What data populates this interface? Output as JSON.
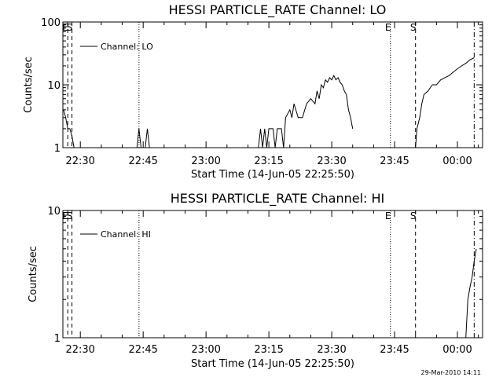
{
  "x_axis_time_range": [
    "22:25:50",
    "00:06"
  ],
  "footer": {
    "timestamp": "29-Mar-2010 14:11"
  },
  "chart_data": [
    {
      "type": "line",
      "title": "HESSI PARTICLE_RATE Channel: LO",
      "xlabel": "Start Time (14-Jun-05 22:25:50)",
      "ylabel": "Counts/sec",
      "yscale": "log",
      "ylim": [
        1,
        100
      ],
      "yticks": [
        1,
        10,
        100
      ],
      "ytick_labels": [
        "1",
        "10",
        "100"
      ],
      "xticks": [
        "22:30",
        "22:45",
        "23:00",
        "23:15",
        "23:30",
        "23:45",
        "00:00"
      ],
      "legend": "Channel: LO",
      "markers": [
        {
          "label": "E",
          "time": "22:27",
          "style": "dashed"
        },
        {
          "label": "S",
          "time": "22:28",
          "style": "dashed"
        },
        {
          "label": "",
          "time": "22:44",
          "style": "dotted"
        },
        {
          "label": "E",
          "time": "23:44",
          "style": "dotted"
        },
        {
          "label": "S",
          "time": "23:50",
          "style": "dashed"
        },
        {
          "label": "",
          "time": "00:04",
          "style": "dash-dot"
        }
      ],
      "series": [
        {
          "name": "Channel: LO",
          "segments": [
            [
              [
                "22:26:00",
                4
              ],
              [
                "22:26:30",
                3
              ],
              [
                "22:27:00",
                2
              ],
              [
                "22:27:30",
                2
              ],
              [
                "22:28:00",
                1.5
              ],
              [
                "22:28:30",
                1
              ]
            ],
            [
              [
                "22:43:30",
                1
              ],
              [
                "22:44:00",
                2
              ],
              [
                "22:44:30",
                1
              ]
            ],
            [
              [
                "22:45:30",
                1
              ],
              [
                "22:46:00",
                2
              ],
              [
                "22:46:30",
                1
              ]
            ],
            [
              [
                "23:12:30",
                1
              ],
              [
                "23:13:00",
                2
              ],
              [
                "23:13:30",
                1
              ],
              [
                "23:14:00",
                2
              ],
              [
                "23:14:30",
                1
              ],
              [
                "23:15:00",
                2
              ],
              [
                "23:16:00",
                2
              ],
              [
                "23:16:30",
                1
              ],
              [
                "23:17:00",
                2
              ],
              [
                "23:18:00",
                2
              ],
              [
                "23:18:30",
                1
              ],
              [
                "23:19:00",
                3
              ],
              [
                "23:20:00",
                4
              ],
              [
                "23:20:30",
                3
              ],
              [
                "23:21:00",
                5
              ],
              [
                "23:22:00",
                3
              ],
              [
                "23:23:00",
                3
              ],
              [
                "23:24:00",
                5
              ],
              [
                "23:25:00",
                6
              ],
              [
                "23:26:00",
                5
              ],
              [
                "23:26:30",
                8
              ],
              [
                "23:27:00",
                6
              ],
              [
                "23:27:30",
                10
              ],
              [
                "23:28:00",
                9
              ],
              [
                "23:28:30",
                12
              ],
              [
                "23:29:00",
                11
              ],
              [
                "23:29:30",
                13
              ],
              [
                "23:30:00",
                12
              ],
              [
                "23:30:30",
                14
              ],
              [
                "23:31:00",
                12
              ],
              [
                "23:31:30",
                13
              ],
              [
                "23:32:00",
                11
              ],
              [
                "23:32:30",
                10
              ],
              [
                "23:33:00",
                8
              ],
              [
                "23:33:30",
                7
              ],
              [
                "23:34:00",
                4
              ],
              [
                "23:34:30",
                3
              ],
              [
                "23:35:00",
                2
              ]
            ],
            [
              [
                "23:50:00",
                1
              ],
              [
                "23:50:20",
                2
              ],
              [
                "23:51:00",
                3
              ],
              [
                "23:51:30",
                5
              ],
              [
                "23:52:00",
                7
              ],
              [
                "23:53:00",
                8
              ],
              [
                "23:54:00",
                10
              ],
              [
                "23:55:00",
                10
              ],
              [
                "23:56:00",
                12
              ],
              [
                "23:57:00",
                13
              ],
              [
                "23:58:00",
                14
              ],
              [
                "23:59:00",
                16
              ],
              [
                "00:00:00",
                18
              ],
              [
                "00:01:00",
                20
              ],
              [
                "00:02:00",
                22
              ],
              [
                "00:03:00",
                25
              ],
              [
                "00:04:00",
                27
              ]
            ]
          ]
        }
      ]
    },
    {
      "type": "line",
      "title": "HESSI PARTICLE_RATE Channel: HI",
      "xlabel": "Start Time (14-Jun-05 22:25:50)",
      "ylabel": "Counts/sec",
      "yscale": "log",
      "ylim": [
        1,
        10
      ],
      "yticks": [
        1,
        10
      ],
      "ytick_labels": [
        "1",
        "10"
      ],
      "xticks": [
        "22:30",
        "22:45",
        "23:00",
        "23:15",
        "23:30",
        "23:45",
        "00:00"
      ],
      "legend": "Channel: HI",
      "markers": [
        {
          "label": "E",
          "time": "22:27",
          "style": "dashed"
        },
        {
          "label": "S",
          "time": "22:28",
          "style": "dashed"
        },
        {
          "label": "",
          "time": "22:44",
          "style": "dotted"
        },
        {
          "label": "E",
          "time": "23:44",
          "style": "dotted"
        },
        {
          "label": "S",
          "time": "23:50",
          "style": "dashed"
        },
        {
          "label": "",
          "time": "00:04",
          "style": "dash-dot"
        }
      ],
      "series": [
        {
          "name": "Channel: HI",
          "segments": [
            [
              [
                "00:02:00",
                1
              ],
              [
                "00:02:30",
                2
              ],
              [
                "00:03:00",
                2.5
              ],
              [
                "00:03:30",
                3
              ],
              [
                "00:04:00",
                4
              ],
              [
                "00:04:30",
                5
              ]
            ]
          ]
        }
      ]
    }
  ]
}
